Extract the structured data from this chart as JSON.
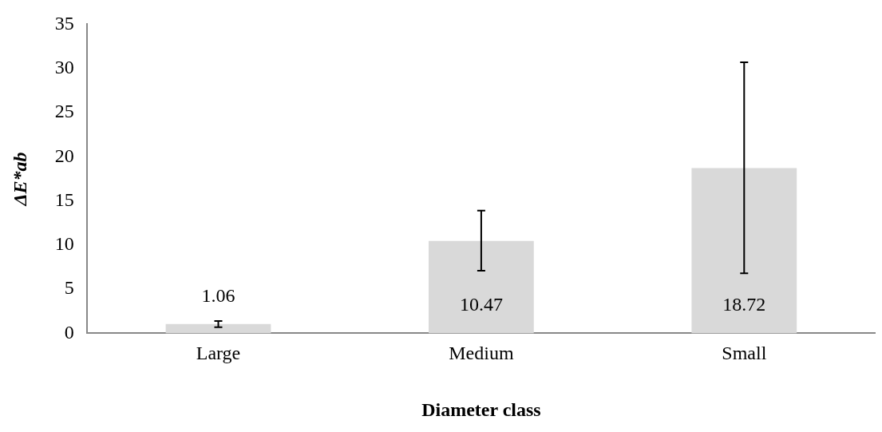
{
  "chart_data": {
    "type": "bar",
    "xlabel": "Diameter class",
    "ylabel": "ΔE*ab",
    "categories": [
      "Large",
      "Medium",
      "Small"
    ],
    "values": [
      1.06,
      10.47,
      18.72
    ],
    "color": "#d9d9d9",
    "errors": [
      [
        0.7,
        1.4
      ],
      [
        7.1,
        13.9
      ],
      [
        6.8,
        30.7
      ]
    ],
    "ylim": [
      0,
      35
    ],
    "yticks": [
      0,
      5,
      10,
      15,
      20,
      25,
      30,
      35
    ],
    "grid": false,
    "legend": false,
    "data_labels": true
  }
}
